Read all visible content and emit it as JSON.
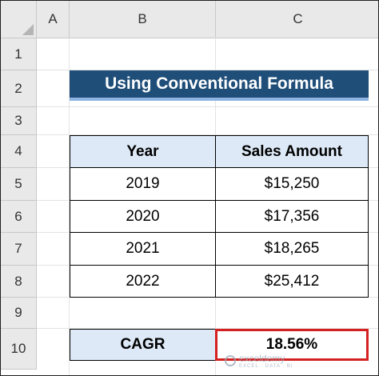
{
  "sheet": {
    "columns": [
      "A",
      "B",
      "C"
    ],
    "rows": [
      "1",
      "2",
      "3",
      "4",
      "5",
      "6",
      "7",
      "8",
      "9",
      "10"
    ]
  },
  "title": "Using Conventional Formula",
  "table": {
    "headers": [
      "Year",
      "Sales Amount"
    ],
    "rows": [
      [
        "2019",
        "$15,250"
      ],
      [
        "2020",
        "$17,356"
      ],
      [
        "2021",
        "$18,265"
      ],
      [
        "2022",
        "$25,412"
      ]
    ]
  },
  "result": {
    "label": "CAGR",
    "value": "18.56%"
  },
  "watermark": {
    "name": "exceldemy",
    "tagline": "EXCEL · DATA · BI"
  },
  "colors": {
    "banner": "#1f4e79",
    "banner_accent": "#8db4e2",
    "header_fill": "#dde9f6",
    "highlight_border": "#d42020"
  }
}
